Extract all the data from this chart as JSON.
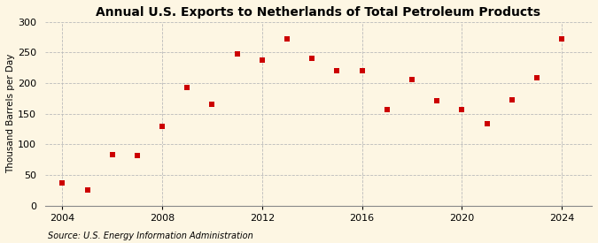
{
  "title": "Annual U.S. Exports to Netherlands of Total Petroleum Products",
  "ylabel": "Thousand Barrels per Day",
  "source": "Source: U.S. Energy Information Administration",
  "years": [
    2004,
    2005,
    2006,
    2007,
    2008,
    2009,
    2010,
    2011,
    2012,
    2013,
    2014,
    2015,
    2016,
    2017,
    2018,
    2019,
    2020,
    2021,
    2022,
    2023,
    2024
  ],
  "values": [
    37,
    25,
    83,
    81,
    130,
    193,
    165,
    248,
    238,
    272,
    241,
    221,
    221,
    157,
    206,
    171,
    157,
    133,
    172,
    209,
    272
  ],
  "marker_color": "#cc0000",
  "marker_size": 18,
  "background_color": "#fdf6e3",
  "grid_color": "#bbbbbb",
  "ylim": [
    0,
    300
  ],
  "yticks": [
    0,
    50,
    100,
    150,
    200,
    250,
    300
  ],
  "xlim": [
    2003.3,
    2025.2
  ],
  "xticks": [
    2004,
    2008,
    2012,
    2016,
    2020,
    2024
  ],
  "title_fontsize": 10,
  "ylabel_fontsize": 7.5,
  "source_fontsize": 7,
  "tick_fontsize": 8
}
